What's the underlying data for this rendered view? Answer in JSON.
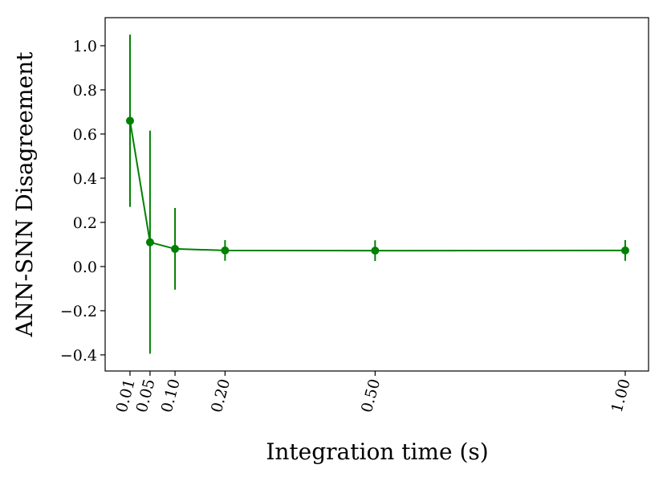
{
  "chart_data": {
    "type": "line",
    "x_label": "Integration time (s)",
    "y_label": "ANN-SNN Disagreement",
    "x": [
      0.01,
      0.05,
      0.1,
      0.2,
      0.5,
      1.0
    ],
    "series": [
      {
        "color": "#008000",
        "values": [
          0.66,
          0.11,
          0.08,
          0.073,
          0.072,
          0.073
        ],
        "errors": [
          0.39,
          0.505,
          0.185,
          0.047,
          0.047,
          0.047
        ]
      }
    ],
    "xlim": [
      -0.0397,
      1.0466
    ],
    "ylim": [
      -0.473,
      1.127
    ],
    "xticks": [
      0.01,
      0.05,
      {
        "value": 0.1,
        "label": "0.10"
      },
      {
        "value": 0.2,
        "label": "0.20"
      },
      {
        "value": 0.5,
        "label": "0.50"
      },
      {
        "value": 1.0,
        "label": "1.00"
      }
    ],
    "yticks": [
      {
        "value": -0.4,
        "label": "−0.4"
      },
      {
        "value": -0.2,
        "label": "−0.2"
      },
      {
        "value": 0,
        "label": "0.0"
      },
      {
        "value": 0.2,
        "label": "0.2"
      },
      {
        "value": 0.4,
        "label": "0.4"
      },
      {
        "value": 0.6,
        "label": "0.6"
      },
      {
        "value": 0.8,
        "label": "0.8"
      },
      {
        "value": 1.0,
        "label": "1.0"
      }
    ],
    "grid": false
  }
}
